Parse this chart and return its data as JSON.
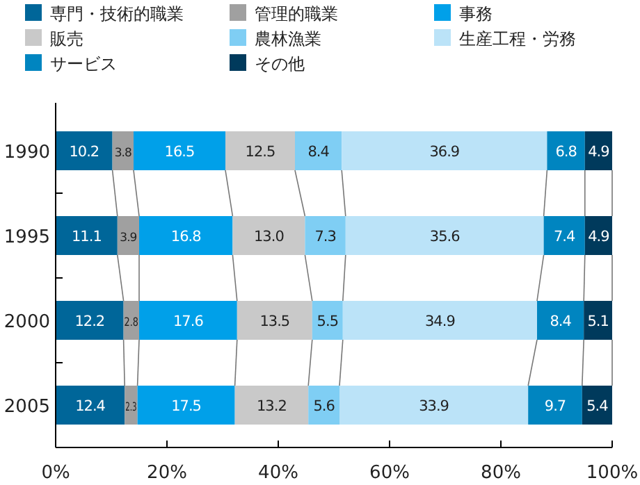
{
  "chart_data": {
    "type": "bar",
    "orientation": "horizontal",
    "stacked": true,
    "legend": "top",
    "categories": [
      "1990",
      "1995",
      "2000",
      "2005"
    ],
    "xlim": [
      0,
      100
    ],
    "xticks": [
      {
        "value": 0,
        "label": "0%"
      },
      {
        "value": 20,
        "label": "20%"
      },
      {
        "value": 40,
        "label": "40%"
      },
      {
        "value": 60,
        "label": "60%"
      },
      {
        "value": 80,
        "label": "80%"
      },
      {
        "value": 100,
        "label": "100%"
      }
    ],
    "series": [
      {
        "name": "専門・技術的職業",
        "color": "#006699",
        "values": [
          10.2,
          11.1,
          12.2,
          12.4
        ],
        "value_labels": [
          "10.2",
          "11.1",
          "12.2",
          "12.4"
        ]
      },
      {
        "name": "管理的職業",
        "color": "#a0a0a0",
        "values": [
          3.8,
          3.9,
          2.8,
          2.3
        ],
        "value_labels": [
          "3.8",
          "3.9",
          "2.8",
          "2.3"
        ]
      },
      {
        "name": "事務",
        "color": "#00a0e9",
        "values": [
          16.5,
          16.8,
          17.6,
          17.5
        ],
        "value_labels": [
          "16.5",
          "16.8",
          "17.6",
          "17.5"
        ]
      },
      {
        "name": "販売",
        "color": "#c9c9c9",
        "values": [
          12.5,
          13.0,
          13.5,
          13.2
        ],
        "value_labels": [
          "12.5",
          "13.0",
          "13.5",
          "13.2"
        ]
      },
      {
        "name": "農林漁業",
        "color": "#7fcef4",
        "values": [
          8.4,
          7.3,
          5.5,
          5.6
        ],
        "value_labels": [
          "8.4",
          "7.3",
          "5.5",
          "5.6"
        ]
      },
      {
        "name": "生産工程・労務",
        "color": "#bbe3f8",
        "values": [
          36.9,
          35.6,
          34.9,
          33.9
        ],
        "value_labels": [
          "36.9",
          "35.6",
          "34.9",
          "33.9"
        ]
      },
      {
        "name": "サービス",
        "color": "#0085c0",
        "values": [
          6.8,
          7.4,
          8.4,
          9.7
        ],
        "value_labels": [
          "6.8",
          "7.4",
          "8.4",
          "9.7"
        ]
      },
      {
        "name": "その他",
        "color": "#003a5c",
        "values": [
          4.9,
          4.9,
          5.1,
          5.4
        ],
        "value_labels": [
          "4.9",
          "4.9",
          "5.1",
          "5.4"
        ]
      }
    ]
  }
}
